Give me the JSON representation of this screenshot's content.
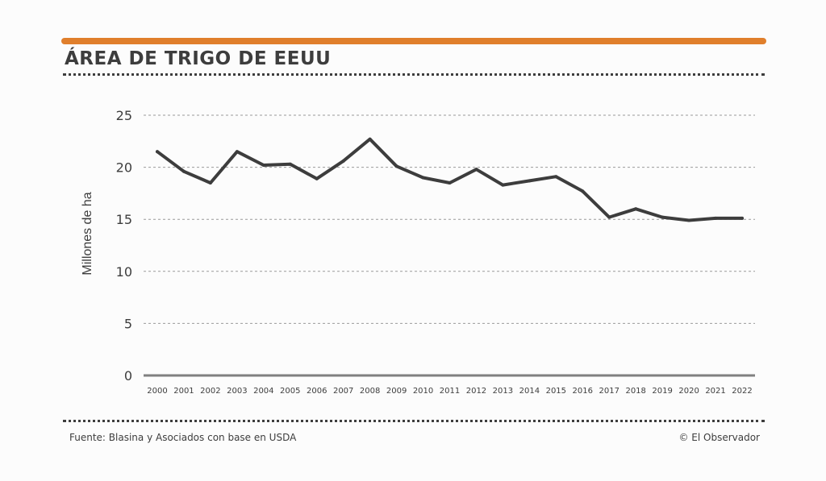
{
  "header": {
    "title": "ÁREA DE TRIGO DE EEUU"
  },
  "footer": {
    "source": "Fuente: Blasina y Asociados con base en USDA",
    "credit": "© El Observador"
  },
  "colors": {
    "accent": "#e07f2c",
    "text": "#3d3d3d",
    "line": "#3d3d3d",
    "grid": "#9a9a9a",
    "baseline": "#808080"
  },
  "chart_data": {
    "type": "line",
    "title": "ÁREA DE TRIGO DE EEUU",
    "xlabel": "",
    "ylabel": "Millones de ha",
    "ylim": [
      0,
      25
    ],
    "yticks": [
      0,
      5,
      10,
      15,
      20,
      25
    ],
    "grid": true,
    "categories": [
      "2000",
      "2001",
      "2002",
      "2003",
      "2004",
      "2005",
      "2006",
      "2007",
      "2008",
      "2009",
      "2010",
      "2011",
      "2012",
      "2013",
      "2014",
      "2015",
      "2016",
      "2017",
      "2018",
      "2019",
      "2020",
      "2021",
      "2022"
    ],
    "series": [
      {
        "name": "Área de trigo",
        "values": [
          21.5,
          19.6,
          18.5,
          21.5,
          20.2,
          20.3,
          18.9,
          20.6,
          22.7,
          20.1,
          19.0,
          18.5,
          19.8,
          18.3,
          18.7,
          19.1,
          17.7,
          15.2,
          16.0,
          15.2,
          14.9,
          15.1,
          15.1
        ]
      }
    ]
  }
}
